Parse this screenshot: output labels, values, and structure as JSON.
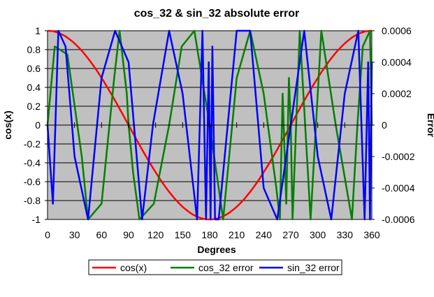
{
  "chart_data": {
    "type": "line",
    "title": "cos_32 &  sin_32 absolute error",
    "xlabel": "Degrees",
    "ylabel_left": "cos(x)",
    "ylabel_right": "Error",
    "xlim": [
      0,
      360
    ],
    "xticks": [
      0,
      30,
      60,
      90,
      120,
      150,
      180,
      210,
      240,
      270,
      300,
      330,
      360
    ],
    "ylim_left": [
      -1,
      1
    ],
    "yticks_left": [
      -1,
      -0.8,
      -0.6,
      -0.4,
      -0.2,
      0,
      0.2,
      0.4,
      0.6,
      0.8,
      1
    ],
    "ytick_labels_left": [
      "-1",
      "-0.8",
      "-0.6",
      "-0.4",
      "-0.2",
      "0",
      "0.2",
      "0.4",
      "0.6",
      "0.8",
      "1"
    ],
    "ylim_right": [
      -0.0006,
      0.0006
    ],
    "yticks_right": [
      -0.0006,
      -0.0004,
      -0.0002,
      0,
      0.0002,
      0.0004,
      0.0006
    ],
    "ytick_labels_right": [
      "-0.0006",
      "-0.0004",
      "-0.0002",
      "0",
      "0.0002",
      "0.0004",
      "0.0006"
    ],
    "grid": "horizontal",
    "plot_background": "#c0c0c0",
    "legend_position": "bottom",
    "series": [
      {
        "name": "cos(x)",
        "color": "#ff0000",
        "axis": "left",
        "function": "cos",
        "x": [
          0,
          15,
          30,
          45,
          60,
          75,
          90,
          105,
          120,
          135,
          150,
          165,
          180,
          195,
          210,
          225,
          240,
          255,
          270,
          285,
          300,
          315,
          330,
          345,
          360
        ],
        "y": [
          1,
          0.966,
          0.866,
          0.707,
          0.5,
          0.259,
          0,
          -0.259,
          -0.5,
          -0.707,
          -0.866,
          -0.966,
          -1,
          -0.966,
          -0.866,
          -0.707,
          -0.5,
          -0.259,
          0,
          0.259,
          0.5,
          0.707,
          0.866,
          0.966,
          1
        ]
      },
      {
        "name": "cos_32  error",
        "color": "#008000",
        "axis": "right",
        "x": [
          0,
          8,
          22,
          38,
          45,
          60,
          74,
          80,
          88,
          90,
          95,
          102,
          118,
          135,
          149,
          163,
          180,
          195,
          210,
          225,
          240,
          254,
          258,
          261,
          265,
          268,
          270,
          272,
          280,
          292,
          298,
          304,
          320,
          338,
          344,
          350,
          358,
          360
        ],
        "y": [
          0,
          0.0005,
          0.00045,
          -0.0002,
          -0.0006,
          -0.0005,
          0.0003,
          0.0006,
          0.0002,
          0,
          -0.0003,
          -0.0006,
          -0.0005,
          0,
          0.0005,
          0.0006,
          0,
          -0.0006,
          0.0003,
          0.0006,
          0.0002,
          -0.0004,
          -0.0006,
          0.0002,
          -0.0005,
          0.0003,
          0,
          -0.0006,
          0.0006,
          -0.0006,
          0,
          0.0006,
          0,
          -0.0006,
          0,
          0.0005,
          0.0006,
          0
        ]
      },
      {
        "name": "sin_32 error",
        "color": "#0000ff",
        "axis": "right",
        "x": [
          0,
          6,
          12,
          20,
          30,
          45,
          60,
          75,
          90,
          105,
          117,
          135,
          150,
          166,
          172,
          176,
          179,
          181,
          183,
          186,
          190,
          210,
          225,
          240,
          255,
          270,
          285,
          300,
          315,
          330,
          345,
          352,
          356,
          358,
          360
        ],
        "y": [
          0,
          -0.0005,
          0.0006,
          0.0005,
          -0.0002,
          -0.0006,
          0.0003,
          0.0006,
          0.0004,
          -0.0006,
          0,
          0.0006,
          0.0002,
          -0.0006,
          0.0006,
          -0.0006,
          0.0004,
          -0.0006,
          0.0005,
          -0.0006,
          -0.0006,
          0.0006,
          0.0006,
          -0.0004,
          -0.0006,
          0,
          0.0006,
          -0.0002,
          -0.0006,
          0.0002,
          0.0006,
          -0.0006,
          0.0004,
          -0.0006,
          0.0004
        ]
      }
    ]
  }
}
